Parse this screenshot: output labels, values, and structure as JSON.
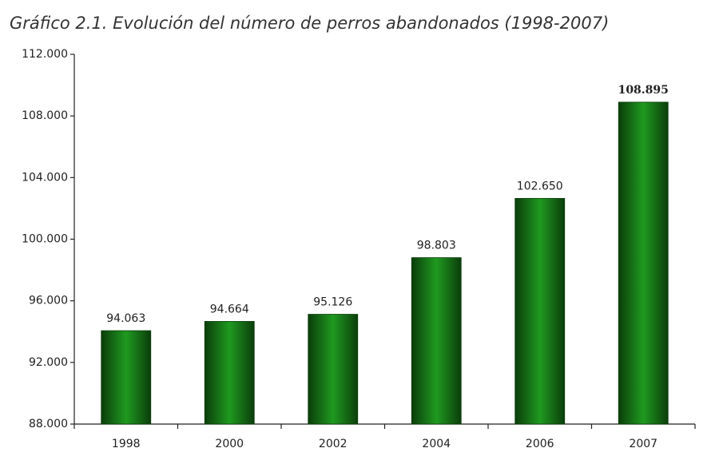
{
  "chart_data": {
    "type": "bar",
    "title": "Gráfico 2.1. Evolución del número de perros abandonados (1998-2007)",
    "categories": [
      "1998",
      "2000",
      "2002",
      "2004",
      "2006",
      "2007"
    ],
    "values": [
      94063,
      94664,
      95126,
      98803,
      102650,
      108895
    ],
    "value_labels": [
      "94.063",
      "94.664",
      "95.126",
      "98.803",
      "102.650",
      "108.895"
    ],
    "color": "#1f9a1f",
    "ylim": [
      88000,
      112000
    ],
    "yticks": [
      {
        "value": 88000,
        "label": "88.000"
      },
      {
        "value": 92000,
        "label": "92.000"
      },
      {
        "value": 96000,
        "label": "96.000"
      },
      {
        "value": 100000,
        "label": "100.000"
      },
      {
        "value": 104000,
        "label": "104.000"
      },
      {
        "value": 108000,
        "label": "108.000"
      },
      {
        "value": 112000,
        "label": "112.000"
      }
    ],
    "grid": false
  }
}
